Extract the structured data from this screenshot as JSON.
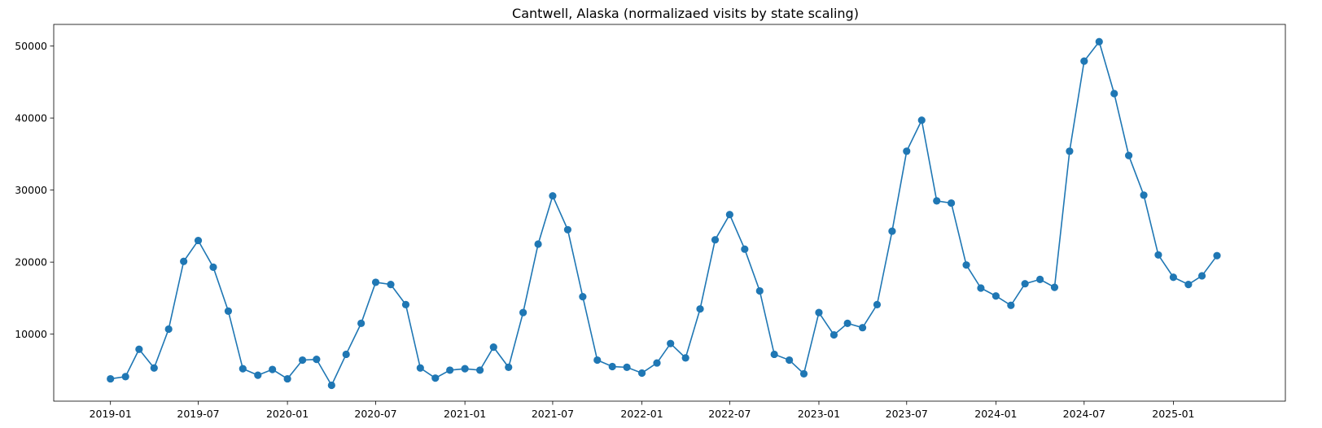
{
  "chart_data": {
    "type": "line",
    "title": "Cantwell, Alaska (normalizaed visits by state scaling)",
    "xlabel": "",
    "ylabel": "",
    "xlim": [
      "2018-09-06",
      "2025-08-20"
    ],
    "ylim": [
      700,
      53000
    ],
    "x_ticks": [
      "2019-01",
      "2019-07",
      "2020-01",
      "2020-07",
      "2021-01",
      "2021-07",
      "2022-01",
      "2022-07",
      "2023-01",
      "2023-07",
      "2024-01",
      "2024-07",
      "2025-01"
    ],
    "y_ticks": [
      10000,
      20000,
      30000,
      40000,
      50000
    ],
    "grid": false,
    "colors": {
      "line": "#1f77b4",
      "marker": "#1f77b4"
    },
    "series": [
      {
        "x": [
          "2019-01",
          "2019-02",
          "2019-03",
          "2019-04",
          "2019-05",
          "2019-06",
          "2019-07",
          "2019-08",
          "2019-09",
          "2019-10",
          "2019-11",
          "2019-12",
          "2020-01",
          "2020-02",
          "2020-03",
          "2020-04",
          "2020-05",
          "2020-06",
          "2020-07",
          "2020-08",
          "2020-09",
          "2020-10",
          "2020-11",
          "2020-12",
          "2021-01",
          "2021-02",
          "2021-03",
          "2021-04",
          "2021-05",
          "2021-06",
          "2021-07",
          "2021-08",
          "2021-09",
          "2021-10",
          "2021-11",
          "2021-12",
          "2022-01",
          "2022-02",
          "2022-03",
          "2022-04",
          "2022-05",
          "2022-06",
          "2022-07",
          "2022-08",
          "2022-09",
          "2022-10",
          "2022-11",
          "2022-12",
          "2023-01",
          "2023-02",
          "2023-03",
          "2023-04",
          "2023-05",
          "2023-06",
          "2023-07",
          "2023-08",
          "2023-09",
          "2023-10",
          "2023-11",
          "2023-12",
          "2024-01",
          "2024-02",
          "2024-03",
          "2024-04",
          "2024-05",
          "2024-06",
          "2024-07",
          "2024-08",
          "2024-09",
          "2024-10",
          "2024-11",
          "2024-12",
          "2025-01",
          "2025-02",
          "2025-03",
          "2025-04"
        ],
        "values": [
          3800,
          4100,
          7900,
          5300,
          10700,
          20100,
          23000,
          19300,
          13200,
          5200,
          4300,
          5100,
          3800,
          6400,
          6500,
          2900,
          7200,
          11500,
          17200,
          16900,
          14100,
          5300,
          3900,
          5000,
          5200,
          5000,
          8200,
          5400,
          13000,
          22500,
          29200,
          24500,
          15200,
          6400,
          5500,
          5400,
          4600,
          6000,
          8700,
          6700,
          13500,
          23100,
          26600,
          21800,
          16000,
          7200,
          6400,
          4500,
          13000,
          9900,
          11500,
          10900,
          14100,
          24300,
          35400,
          39700,
          28500,
          28200,
          19600,
          16400,
          15300,
          14000,
          17000,
          17600,
          16500,
          35400,
          47900,
          50600,
          43400,
          34800,
          29300,
          21000,
          17900,
          16900,
          18100,
          20900
        ]
      }
    ]
  }
}
